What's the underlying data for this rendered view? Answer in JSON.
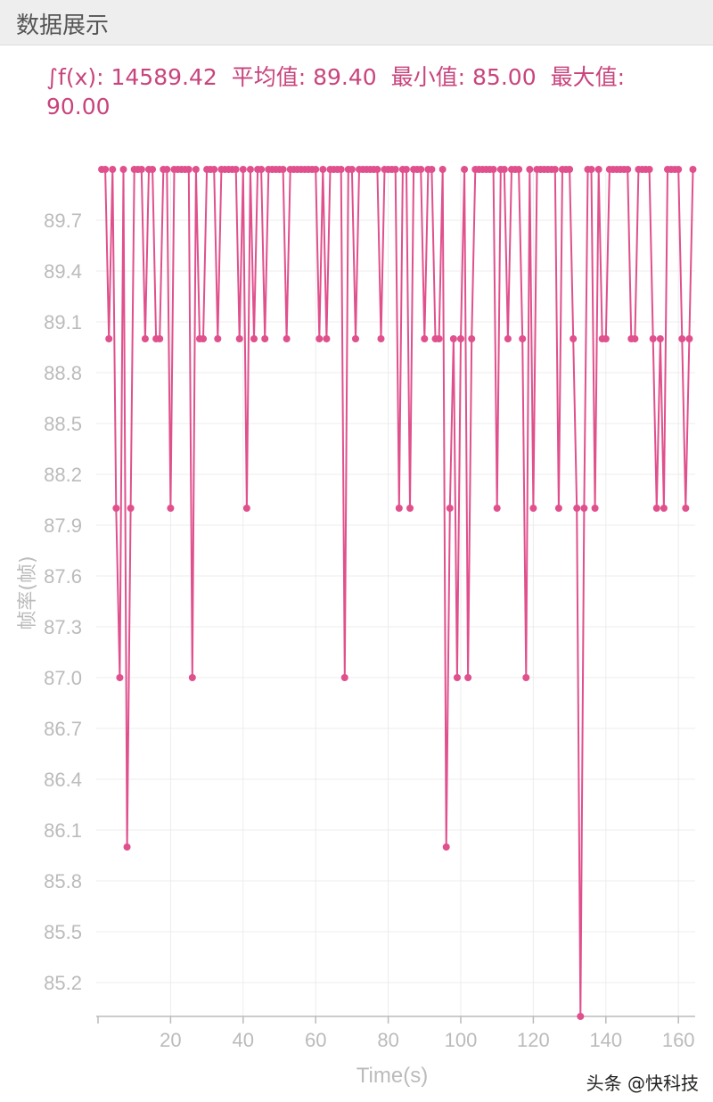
{
  "header": {
    "title": "数据展示"
  },
  "stats": {
    "integral": "∫f(x): 14589.42",
    "average": "平均值: 89.40",
    "min": "最小值: 85.00",
    "max": "最大值: 90.00"
  },
  "watermark": "头条 @快科技",
  "colors": {
    "series": "#e0508c",
    "grid": "#ececec",
    "axis": "#bbbbbb",
    "tick": "#bbbbbb"
  },
  "chart_data": {
    "type": "line",
    "xlabel": "Time(s)",
    "ylabel": "帧率(帧)",
    "xlim": [
      0,
      165
    ],
    "ylim": [
      85,
      90
    ],
    "xticks": [
      20,
      40,
      60,
      80,
      100,
      120,
      140,
      160
    ],
    "yticks": [
      85.2,
      85.5,
      85.8,
      86.1,
      86.4,
      86.7,
      87.0,
      87.3,
      87.6,
      87.9,
      88.2,
      88.5,
      88.8,
      89.1,
      89.4,
      89.7
    ],
    "grid": true,
    "series": [
      {
        "values": [
          90,
          90,
          89,
          90,
          88,
          87,
          90,
          86,
          88,
          90,
          90,
          90,
          89,
          90,
          90,
          89,
          89,
          90,
          90,
          88,
          90,
          90,
          90,
          90,
          90,
          87,
          90,
          89,
          89,
          90,
          90,
          90,
          89,
          90,
          90,
          90,
          90,
          90,
          89,
          90,
          88,
          90,
          89,
          90,
          90,
          89,
          90,
          90,
          90,
          90,
          90,
          89,
          90,
          90,
          90,
          90,
          90,
          90,
          90,
          90,
          89,
          90,
          89,
          90,
          90,
          90,
          90,
          87,
          90,
          90,
          89,
          90,
          90,
          90,
          90,
          90,
          90,
          89,
          90,
          90,
          90,
          90,
          88,
          90,
          90,
          88,
          90,
          90,
          90,
          89,
          90,
          90,
          89,
          89,
          90,
          86,
          88,
          89,
          87,
          89,
          90,
          87,
          89,
          90,
          90,
          90,
          90,
          90,
          90,
          88,
          90,
          90,
          89,
          90,
          90,
          90,
          89,
          87,
          90,
          88,
          90,
          90,
          90,
          90,
          90,
          90,
          88,
          90,
          90,
          90,
          89,
          88,
          85,
          88,
          90,
          90,
          88,
          90,
          89,
          89,
          90,
          90,
          90,
          90,
          90,
          90,
          89,
          89,
          90,
          90,
          90,
          90,
          89,
          88,
          89,
          88,
          90,
          90,
          90,
          90,
          89,
          88,
          89,
          90
        ]
      }
    ]
  }
}
